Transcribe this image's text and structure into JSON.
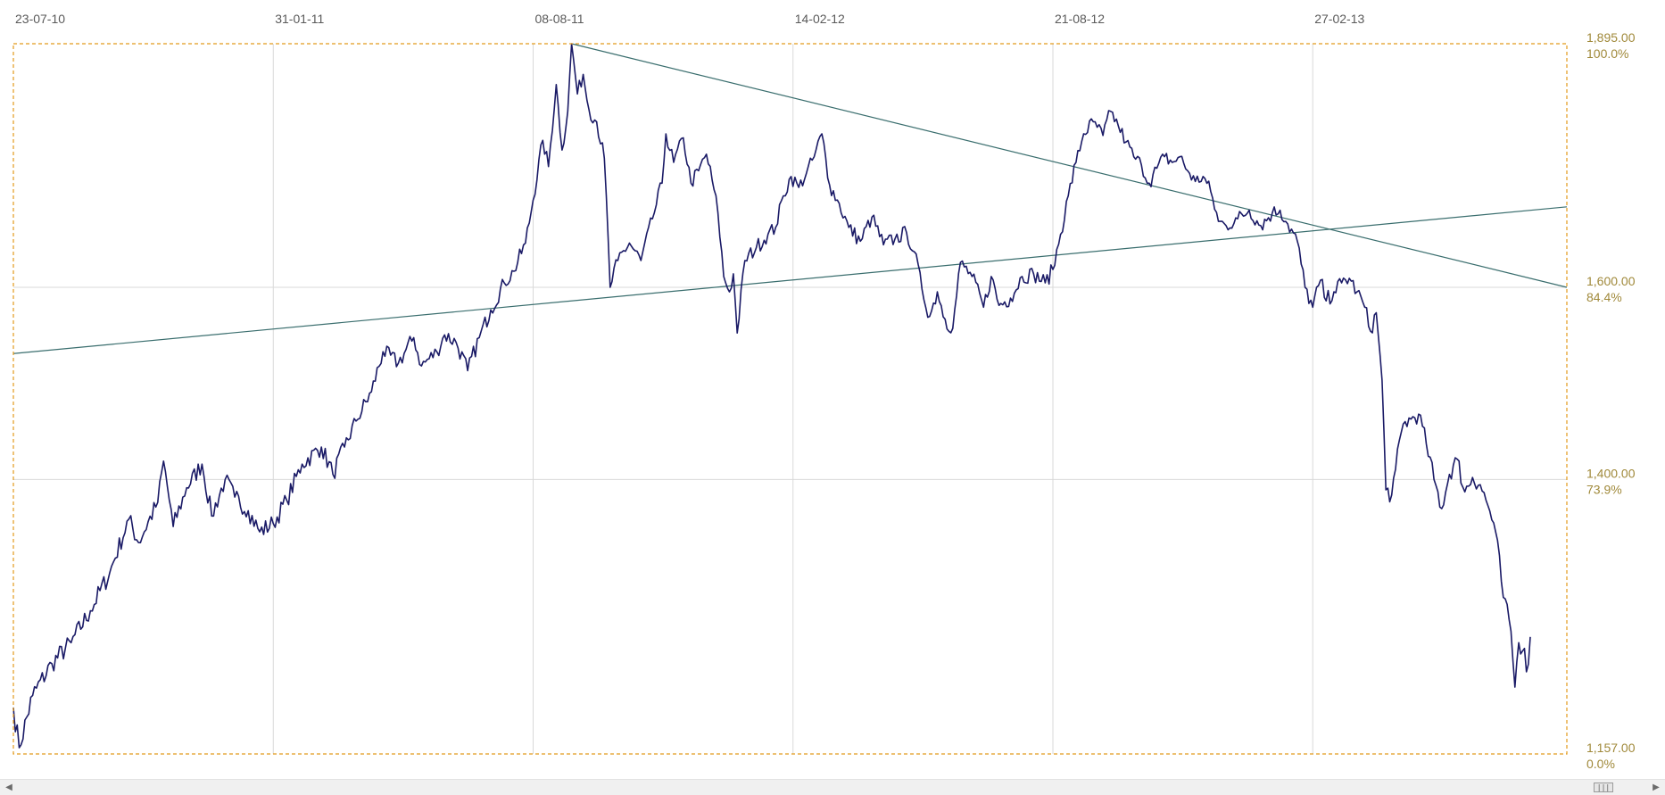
{
  "chart_data": {
    "type": "line",
    "x_tick_labels": [
      "23-07-10",
      "31-01-11",
      "08-08-11",
      "14-02-12",
      "21-08-12",
      "27-02-13"
    ],
    "x_tick_index": [
      0,
      135,
      270,
      405,
      540,
      675
    ],
    "y_scale": "log",
    "ylim": [
      1157,
      1895
    ],
    "grid": true,
    "y_tick_labels": [
      {
        "value": 1895,
        "price": "1,895.00",
        "pct": "100.0%"
      },
      {
        "value": 1600,
        "price": "1,600.00",
        "pct": "84.4%"
      },
      {
        "value": 1400,
        "price": "1,400.00",
        "pct": "73.9%"
      },
      {
        "value": 1157,
        "price": "1,157.00",
        "pct": "0.0%"
      }
    ],
    "series": [
      {
        "color": "#1a1a66",
        "anchors": [
          [
            0,
            1195
          ],
          [
            3,
            1162
          ],
          [
            10,
            1205
          ],
          [
            20,
            1232
          ],
          [
            30,
            1250
          ],
          [
            40,
            1278
          ],
          [
            50,
            1312
          ],
          [
            60,
            1362
          ],
          [
            65,
            1340
          ],
          [
            75,
            1378
          ],
          [
            78,
            1418
          ],
          [
            83,
            1355
          ],
          [
            90,
            1392
          ],
          [
            98,
            1415
          ],
          [
            103,
            1365
          ],
          [
            110,
            1400
          ],
          [
            115,
            1383
          ],
          [
            122,
            1370
          ],
          [
            128,
            1350
          ],
          [
            135,
            1358
          ],
          [
            142,
            1380
          ],
          [
            150,
            1415
          ],
          [
            160,
            1432
          ],
          [
            166,
            1405
          ],
          [
            172,
            1432
          ],
          [
            178,
            1458
          ],
          [
            186,
            1488
          ],
          [
            192,
            1530
          ],
          [
            200,
            1518
          ],
          [
            208,
            1545
          ],
          [
            212,
            1515
          ],
          [
            220,
            1530
          ],
          [
            224,
            1548
          ],
          [
            230,
            1540
          ],
          [
            236,
            1510
          ],
          [
            242,
            1545
          ],
          [
            248,
            1575
          ],
          [
            255,
            1605
          ],
          [
            260,
            1618
          ],
          [
            266,
            1650
          ],
          [
            270,
            1700
          ],
          [
            275,
            1772
          ],
          [
            278,
            1740
          ],
          [
            282,
            1842
          ],
          [
            285,
            1760
          ],
          [
            288,
            1808
          ],
          [
            290,
            1895
          ],
          [
            293,
            1830
          ],
          [
            296,
            1855
          ],
          [
            299,
            1810
          ],
          [
            303,
            1795
          ],
          [
            307,
            1750
          ],
          [
            310,
            1600
          ],
          [
            314,
            1630
          ],
          [
            320,
            1650
          ],
          [
            326,
            1630
          ],
          [
            332,
            1678
          ],
          [
            337,
            1720
          ],
          [
            339,
            1780
          ],
          [
            343,
            1745
          ],
          [
            348,
            1775
          ],
          [
            352,
            1720
          ],
          [
            356,
            1735
          ],
          [
            360,
            1755
          ],
          [
            364,
            1712
          ],
          [
            366,
            1685
          ],
          [
            369,
            1612
          ],
          [
            372,
            1595
          ],
          [
            374,
            1615
          ],
          [
            376,
            1550
          ],
          [
            380,
            1630
          ],
          [
            386,
            1645
          ],
          [
            392,
            1660
          ],
          [
            396,
            1668
          ],
          [
            400,
            1705
          ],
          [
            404,
            1728
          ],
          [
            408,
            1715
          ],
          [
            412,
            1732
          ],
          [
            416,
            1752
          ],
          [
            420,
            1780
          ],
          [
            424,
            1718
          ],
          [
            428,
            1700
          ],
          [
            434,
            1668
          ],
          [
            440,
            1652
          ],
          [
            446,
            1680
          ],
          [
            452,
            1648
          ],
          [
            458,
            1655
          ],
          [
            464,
            1662
          ],
          [
            468,
            1640
          ],
          [
            472,
            1598
          ],
          [
            476,
            1568
          ],
          [
            480,
            1595
          ],
          [
            484,
            1565
          ],
          [
            488,
            1555
          ],
          [
            492,
            1628
          ],
          [
            498,
            1612
          ],
          [
            504,
            1578
          ],
          [
            508,
            1612
          ],
          [
            512,
            1580
          ],
          [
            518,
            1588
          ],
          [
            524,
            1612
          ],
          [
            530,
            1615
          ],
          [
            536,
            1605
          ],
          [
            540,
            1620
          ],
          [
            544,
            1660
          ],
          [
            548,
            1705
          ],
          [
            552,
            1745
          ],
          [
            556,
            1780
          ],
          [
            561,
            1795
          ],
          [
            566,
            1778
          ],
          [
            570,
            1808
          ],
          [
            574,
            1790
          ],
          [
            578,
            1770
          ],
          [
            582,
            1752
          ],
          [
            586,
            1742
          ],
          [
            590,
            1720
          ],
          [
            594,
            1738
          ],
          [
            598,
            1752
          ],
          [
            602,
            1745
          ],
          [
            606,
            1752
          ],
          [
            610,
            1735
          ],
          [
            614,
            1722
          ],
          [
            618,
            1728
          ],
          [
            622,
            1710
          ],
          [
            626,
            1675
          ],
          [
            630,
            1670
          ],
          [
            636,
            1678
          ],
          [
            642,
            1688
          ],
          [
            648,
            1670
          ],
          [
            654,
            1685
          ],
          [
            658,
            1688
          ],
          [
            662,
            1672
          ],
          [
            667,
            1652
          ],
          [
            671,
            1600
          ],
          [
            675,
            1578
          ],
          [
            679,
            1608
          ],
          [
            682,
            1585
          ],
          [
            686,
            1595
          ],
          [
            690,
            1605
          ],
          [
            694,
            1610
          ],
          [
            698,
            1595
          ],
          [
            702,
            1578
          ],
          [
            705,
            1552
          ],
          [
            708,
            1572
          ],
          [
            711,
            1500
          ],
          [
            713,
            1390
          ],
          [
            716,
            1385
          ],
          [
            718,
            1410
          ],
          [
            722,
            1455
          ],
          [
            726,
            1460
          ],
          [
            730,
            1465
          ],
          [
            734,
            1435
          ],
          [
            738,
            1400
          ],
          [
            742,
            1372
          ],
          [
            746,
            1405
          ],
          [
            750,
            1420
          ],
          [
            754,
            1388
          ],
          [
            758,
            1402
          ],
          [
            762,
            1395
          ],
          [
            766,
            1375
          ],
          [
            770,
            1350
          ],
          [
            774,
            1290
          ],
          [
            778,
            1260
          ],
          [
            780,
            1212
          ],
          [
            782,
            1250
          ],
          [
            785,
            1245
          ],
          [
            786,
            1225
          ],
          [
            788,
            1255
          ]
        ],
        "noise_seed": 7,
        "noise_amplitude": 9
      }
    ],
    "trendlines": [
      {
        "color": "#3a6e6e",
        "from": [
          0,
          1528
        ],
        "to": [
          807,
          1692
        ]
      },
      {
        "color": "#3a6e6e",
        "from": [
          290,
          1895
        ],
        "to": [
          807,
          1600
        ]
      }
    ],
    "plot_frame_color": "#e29a1c",
    "grid_color": "#d9d9d9",
    "x_max_index": 807
  },
  "scrollbar": {
    "left_arrow": "◀",
    "right_arrow": "▶",
    "grip": "|||"
  }
}
